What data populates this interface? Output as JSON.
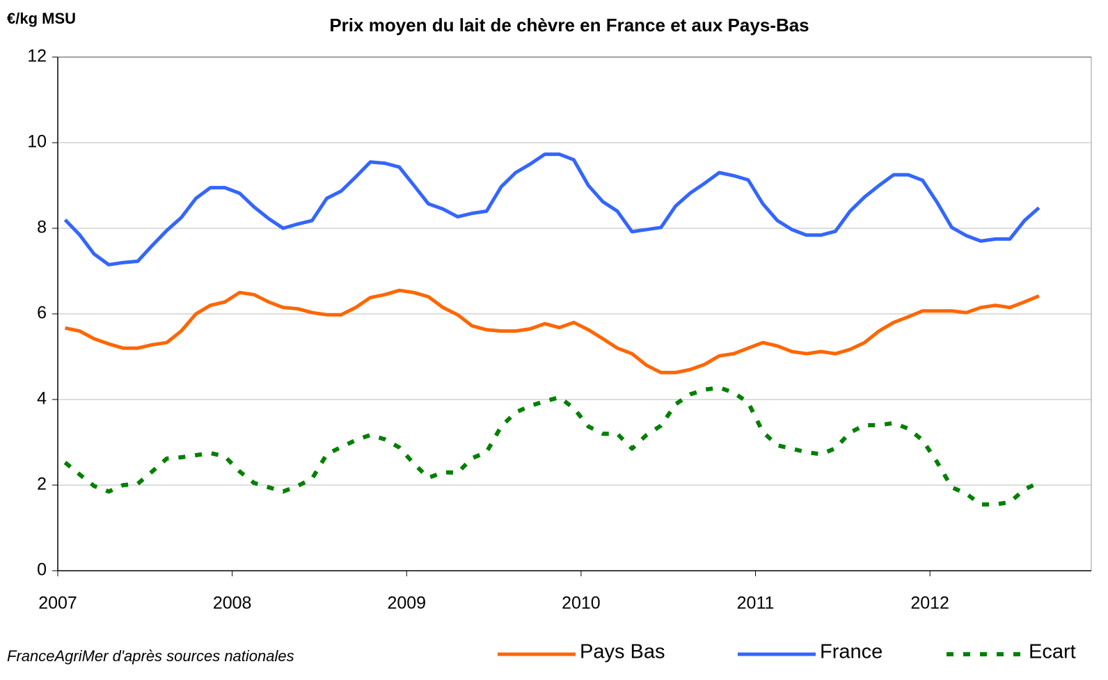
{
  "chart_data": {
    "type": "line",
    "title": "Prix moyen du lait de chèvre en France et aux Pays-Bas",
    "y_label": "€/kg MSU",
    "source": "FranceAgriMer d'après sources nationales",
    "x": [
      2007.042,
      2007.125,
      2007.208,
      2007.292,
      2007.375,
      2007.458,
      2007.542,
      2007.625,
      2007.708,
      2007.792,
      2007.875,
      2007.958,
      2008.042,
      2008.125,
      2008.208,
      2008.292,
      2008.375,
      2008.458,
      2008.542,
      2008.625,
      2008.708,
      2008.792,
      2008.875,
      2008.958,
      2009.042,
      2009.125,
      2009.208,
      2009.292,
      2009.375,
      2009.458,
      2009.542,
      2009.625,
      2009.708,
      2009.792,
      2009.875,
      2009.958,
      2010.042,
      2010.125,
      2010.208,
      2010.292,
      2010.375,
      2010.458,
      2010.542,
      2010.625,
      2010.708,
      2010.792,
      2010.875,
      2010.958,
      2011.042,
      2011.125,
      2011.208,
      2011.292,
      2011.375,
      2011.458,
      2011.542,
      2011.625,
      2011.708,
      2011.792,
      2011.875,
      2011.958,
      2012.042,
      2012.125,
      2012.208,
      2012.292,
      2012.375,
      2012.458,
      2012.542,
      2012.625
    ],
    "series": [
      {
        "name": "Pays Bas",
        "color": "#ff6600",
        "dashed": false,
        "values": [
          5.67,
          5.6,
          5.42,
          5.3,
          5.2,
          5.2,
          5.28,
          5.33,
          5.6,
          6.0,
          6.2,
          6.28,
          6.5,
          6.45,
          6.28,
          6.15,
          6.12,
          6.03,
          5.98,
          5.98,
          6.15,
          6.38,
          6.45,
          6.55,
          6.5,
          6.4,
          6.15,
          5.98,
          5.72,
          5.63,
          5.6,
          5.6,
          5.65,
          5.77,
          5.68,
          5.8,
          5.63,
          5.42,
          5.2,
          5.07,
          4.8,
          4.63,
          4.63,
          4.7,
          4.82,
          5.02,
          5.07,
          5.2,
          5.33,
          5.25,
          5.12,
          5.07,
          5.12,
          5.07,
          5.17,
          5.33,
          5.6,
          5.8,
          5.93,
          6.07,
          6.07,
          6.07,
          6.03,
          6.15,
          6.2,
          6.15,
          6.28,
          6.42
        ]
      },
      {
        "name": "France",
        "color": "#3366ff",
        "dashed": false,
        "values": [
          8.2,
          7.85,
          7.4,
          7.15,
          7.2,
          7.23,
          7.6,
          7.95,
          8.25,
          8.7,
          8.95,
          8.95,
          8.82,
          8.5,
          8.23,
          8.0,
          8.1,
          8.18,
          8.7,
          8.87,
          9.2,
          9.55,
          9.52,
          9.43,
          9.0,
          8.57,
          8.45,
          8.27,
          8.35,
          8.4,
          8.97,
          9.3,
          9.5,
          9.73,
          9.73,
          9.6,
          9.0,
          8.62,
          8.4,
          7.92,
          7.97,
          8.02,
          8.52,
          8.82,
          9.05,
          9.3,
          9.23,
          9.13,
          8.57,
          8.18,
          7.97,
          7.84,
          7.84,
          7.93,
          8.4,
          8.73,
          9.0,
          9.25,
          9.25,
          9.12,
          8.6,
          8.02,
          7.83,
          7.7,
          7.75,
          7.75,
          8.18,
          8.48
        ]
      },
      {
        "name": "Ecart",
        "color": "#008000",
        "dashed": true,
        "values": [
          2.53,
          2.25,
          1.98,
          1.85,
          2.0,
          2.03,
          2.32,
          2.62,
          2.65,
          2.7,
          2.75,
          2.67,
          2.32,
          2.05,
          1.95,
          1.85,
          1.98,
          2.15,
          2.72,
          2.89,
          3.05,
          3.17,
          3.07,
          2.88,
          2.5,
          2.17,
          2.3,
          2.29,
          2.63,
          2.77,
          3.37,
          3.7,
          3.85,
          3.96,
          4.05,
          3.8,
          3.37,
          3.2,
          3.2,
          2.85,
          3.17,
          3.39,
          3.89,
          4.12,
          4.23,
          4.28,
          4.16,
          3.93,
          3.24,
          2.93,
          2.85,
          2.77,
          2.72,
          2.86,
          3.23,
          3.4,
          3.4,
          3.45,
          3.32,
          3.05,
          2.53,
          1.95,
          1.8,
          1.55,
          1.55,
          1.6,
          1.9,
          2.06
        ]
      }
    ],
    "xlim": [
      2007,
      2012.925
    ],
    "xticks": [
      2007,
      2008,
      2009,
      2010,
      2011,
      2012
    ],
    "ylim": [
      0,
      12
    ],
    "yticks": [
      0,
      2,
      4,
      6,
      8,
      10,
      12
    ],
    "grid": true,
    "legend": "bottom-right"
  }
}
